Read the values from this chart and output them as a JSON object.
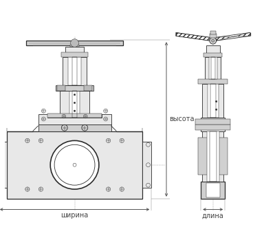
{
  "bg_color": "#ffffff",
  "lc": "#2a2a2a",
  "dim_c": "#444444",
  "gray1": "#e8e8e8",
  "gray2": "#d0d0d0",
  "gray3": "#bbbbbb",
  "label_shirina": "ширина",
  "label_vysota": "высота",
  "label_dlina": "длина",
  "figsize": [
    4.0,
    3.46
  ],
  "dpi": 100
}
